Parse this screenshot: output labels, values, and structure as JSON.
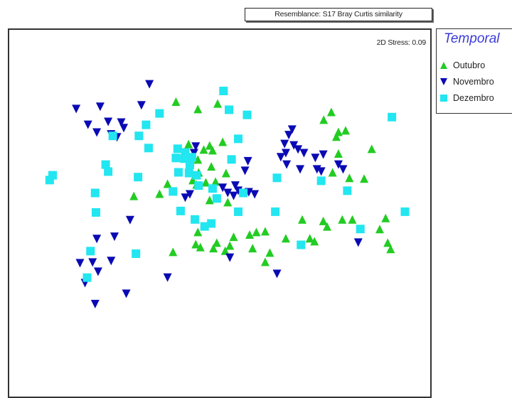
{
  "header": {
    "resemblance": "Resemblance: S17 Bray Curtis similarity"
  },
  "plot": {
    "stress": "2D Stress: 0.09"
  },
  "legend": {
    "title": "Temporal",
    "items": [
      {
        "label": "Outubro",
        "shape": "triangle-up",
        "color": "#22cc22"
      },
      {
        "label": "Novembro",
        "shape": "triangle-down",
        "color": "#0a0ab4"
      },
      {
        "label": "Dezembro",
        "shape": "square",
        "color": "#22e6f0"
      }
    ]
  },
  "chart_data": {
    "type": "scatter",
    "title": "",
    "xlabel": "",
    "ylabel": "",
    "xlim": [
      0,
      100
    ],
    "ylim": [
      0,
      100
    ],
    "grid": false,
    "legend_position": "outside-right",
    "series": [
      {
        "name": "Outubro",
        "marker": "triangle-up",
        "color": "#22cc22",
        "points": [
          [
            39.6,
            80.5
          ],
          [
            44.8,
            78.5
          ],
          [
            49.5,
            80.0
          ],
          [
            76.5,
            77.7
          ],
          [
            74.7,
            75.6
          ],
          [
            78.2,
            72.3
          ],
          [
            79.9,
            72.7
          ],
          [
            77.7,
            71.0
          ],
          [
            42.6,
            69.0
          ],
          [
            47.6,
            68.6
          ],
          [
            48.3,
            67.3
          ],
          [
            50.7,
            69.6
          ],
          [
            46.2,
            67.5
          ],
          [
            44.8,
            64.8
          ],
          [
            48.0,
            62.9
          ],
          [
            45.0,
            61.3
          ],
          [
            43.6,
            59.2
          ],
          [
            46.7,
            58.6
          ],
          [
            49.0,
            58.8
          ],
          [
            44.5,
            58.0
          ],
          [
            86.1,
            67.7
          ],
          [
            78.2,
            66.4
          ],
          [
            76.8,
            61.3
          ],
          [
            80.8,
            59.8
          ],
          [
            84.3,
            59.6
          ],
          [
            51.5,
            61.1
          ],
          [
            37.6,
            58.2
          ],
          [
            29.6,
            54.9
          ],
          [
            35.7,
            55.5
          ],
          [
            47.6,
            53.8
          ],
          [
            51.9,
            53.2
          ],
          [
            69.6,
            48.5
          ],
          [
            74.6,
            48.1
          ],
          [
            79.1,
            48.5
          ],
          [
            81.5,
            48.5
          ],
          [
            89.4,
            48.9
          ],
          [
            75.5,
            46.6
          ],
          [
            88.0,
            45.9
          ],
          [
            58.7,
            45.1
          ],
          [
            60.8,
            45.3
          ],
          [
            57.1,
            44.4
          ],
          [
            53.3,
            43.8
          ],
          [
            44.8,
            45.1
          ],
          [
            65.7,
            43.4
          ],
          [
            71.4,
            43.4
          ],
          [
            72.5,
            42.6
          ],
          [
            89.9,
            42.2
          ],
          [
            44.3,
            41.8
          ],
          [
            49.3,
            42.2
          ],
          [
            45.4,
            41.0
          ],
          [
            48.5,
            40.7
          ],
          [
            51.3,
            40.0
          ],
          [
            52.4,
            41.4
          ],
          [
            57.8,
            40.7
          ],
          [
            61.9,
            39.5
          ],
          [
            38.9,
            39.7
          ],
          [
            90.6,
            40.5
          ],
          [
            60.8,
            37.0
          ]
        ]
      },
      {
        "name": "Novembro",
        "marker": "triangle-down",
        "color": "#0a0ab4",
        "points": [
          [
            33.3,
            85.2
          ],
          [
            31.4,
            79.5
          ],
          [
            15.9,
            78.5
          ],
          [
            21.6,
            79.1
          ],
          [
            18.7,
            74.2
          ],
          [
            23.5,
            75.0
          ],
          [
            26.6,
            74.8
          ],
          [
            27.2,
            73.3
          ],
          [
            20.8,
            72.1
          ],
          [
            24.2,
            71.6
          ],
          [
            25.6,
            70.8
          ],
          [
            67.2,
            72.9
          ],
          [
            66.4,
            71.4
          ],
          [
            65.4,
            69.0
          ],
          [
            67.6,
            68.6
          ],
          [
            68.6,
            67.5
          ],
          [
            65.7,
            66.5
          ],
          [
            64.5,
            65.4
          ],
          [
            70.0,
            66.5
          ],
          [
            74.6,
            66.1
          ],
          [
            72.7,
            65.2
          ],
          [
            65.9,
            63.4
          ],
          [
            69.1,
            62.1
          ],
          [
            73.1,
            62.1
          ],
          [
            78.2,
            63.4
          ],
          [
            56.7,
            64.3
          ],
          [
            74.1,
            61.5
          ],
          [
            79.3,
            62.1
          ],
          [
            56.0,
            61.7
          ],
          [
            44.3,
            68.3
          ],
          [
            43.9,
            66.5
          ],
          [
            53.7,
            57.7
          ],
          [
            54.4,
            56.3
          ],
          [
            50.7,
            57.1
          ],
          [
            51.9,
            55.7
          ],
          [
            53.3,
            54.9
          ],
          [
            42.9,
            55.3
          ],
          [
            56.9,
            55.9
          ],
          [
            58.3,
            55.3
          ],
          [
            41.8,
            54.4
          ],
          [
            28.7,
            48.3
          ],
          [
            20.8,
            43.2
          ],
          [
            25.0,
            43.8
          ],
          [
            16.8,
            36.6
          ],
          [
            19.8,
            36.8
          ],
          [
            24.2,
            37.2
          ],
          [
            21.1,
            34.3
          ],
          [
            18.0,
            31.2
          ],
          [
            82.9,
            42.2
          ],
          [
            52.4,
            38.1
          ],
          [
            63.6,
            33.7
          ],
          [
            27.8,
            28.3
          ],
          [
            37.6,
            32.7
          ],
          [
            20.4,
            25.5
          ]
        ]
      },
      {
        "name": "Dezembro",
        "marker": "square",
        "color": "#22e6f0",
        "points": [
          [
            50.9,
            83.4
          ],
          [
            52.2,
            78.3
          ],
          [
            56.5,
            76.9
          ],
          [
            32.5,
            74.2
          ],
          [
            30.8,
            71.2
          ],
          [
            24.6,
            71.2
          ],
          [
            33.1,
            67.9
          ],
          [
            54.4,
            70.4
          ],
          [
            40.0,
            67.7
          ],
          [
            41.8,
            66.7
          ],
          [
            39.6,
            65.2
          ],
          [
            41.6,
            65.0
          ],
          [
            43.4,
            65.4
          ],
          [
            42.9,
            63.4
          ],
          [
            42.7,
            61.1
          ],
          [
            40.2,
            61.3
          ],
          [
            44.5,
            60.5
          ],
          [
            22.9,
            63.4
          ],
          [
            23.5,
            61.5
          ],
          [
            9.6,
            59.2
          ],
          [
            10.3,
            60.5
          ],
          [
            20.4,
            55.7
          ],
          [
            52.8,
            64.8
          ],
          [
            55.6,
            55.7
          ],
          [
            63.6,
            59.8
          ],
          [
            74.1,
            59.0
          ],
          [
            90.9,
            76.3
          ],
          [
            80.3,
            56.3
          ],
          [
            45.0,
            57.7
          ],
          [
            48.3,
            56.9
          ],
          [
            49.3,
            54.2
          ],
          [
            20.6,
            50.4
          ],
          [
            40.7,
            50.8
          ],
          [
            44.1,
            48.5
          ],
          [
            54.4,
            50.6
          ],
          [
            63.2,
            50.6
          ],
          [
            48.0,
            47.4
          ],
          [
            46.4,
            46.6
          ],
          [
            83.4,
            45.9
          ],
          [
            94.0,
            50.6
          ],
          [
            69.3,
            41.6
          ],
          [
            19.3,
            39.9
          ],
          [
            30.1,
            39.2
          ],
          [
            18.5,
            32.7
          ],
          [
            35.7,
            77.3
          ],
          [
            30.6,
            60.0
          ],
          [
            38.9,
            56.1
          ]
        ]
      }
    ]
  }
}
